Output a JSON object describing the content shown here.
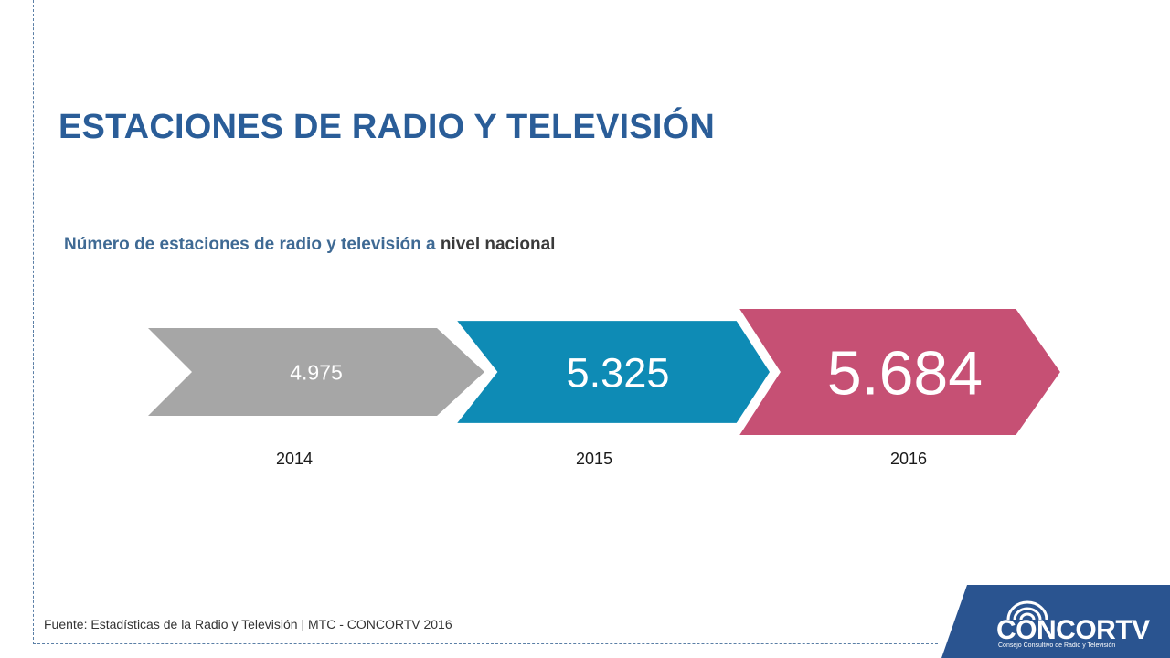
{
  "slide": {
    "title": "ESTACIONES DE RADIO Y TELEVISIÓN",
    "subtitle_part1": "Número de estaciones de radio y televisión a ",
    "subtitle_part2": "nivel nacional",
    "footer": "Fuente: Estadísticas de la Radio y Televisión | MTC - CONCORTV 2016"
  },
  "logo": {
    "name": "CONCORTV",
    "tagline": "Consejo Consultivo de Radio y Televisión",
    "icon": "broadcast-waves-icon",
    "band_color": "#2a5490"
  },
  "chart_data": {
    "type": "bar",
    "categories": [
      "2014",
      "2015",
      "2016"
    ],
    "values": [
      4975,
      5325,
      5684
    ],
    "value_labels": [
      "4.975",
      "5.325",
      "5.684"
    ],
    "colors": [
      "#a6a6a6",
      "#0e8bb5",
      "#c65074"
    ],
    "title": "",
    "xlabel": "",
    "ylabel": ""
  }
}
